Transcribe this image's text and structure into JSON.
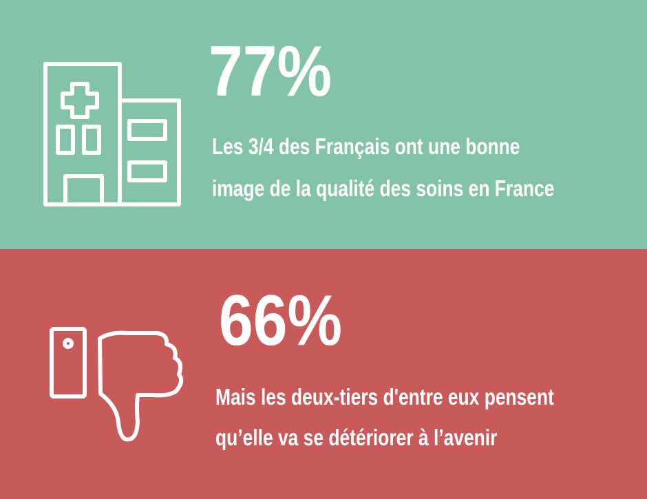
{
  "panels": [
    {
      "stat": "77%",
      "lines": [
        "Les 3/4 des Français ont une bonne",
        "image de la qualité des soins en France"
      ]
    },
    {
      "stat": "66%",
      "lines": [
        "Mais les deux-tiers d'entre eux pensent",
        "qu’elle va se détériorer à l’avenir"
      ]
    }
  ]
}
